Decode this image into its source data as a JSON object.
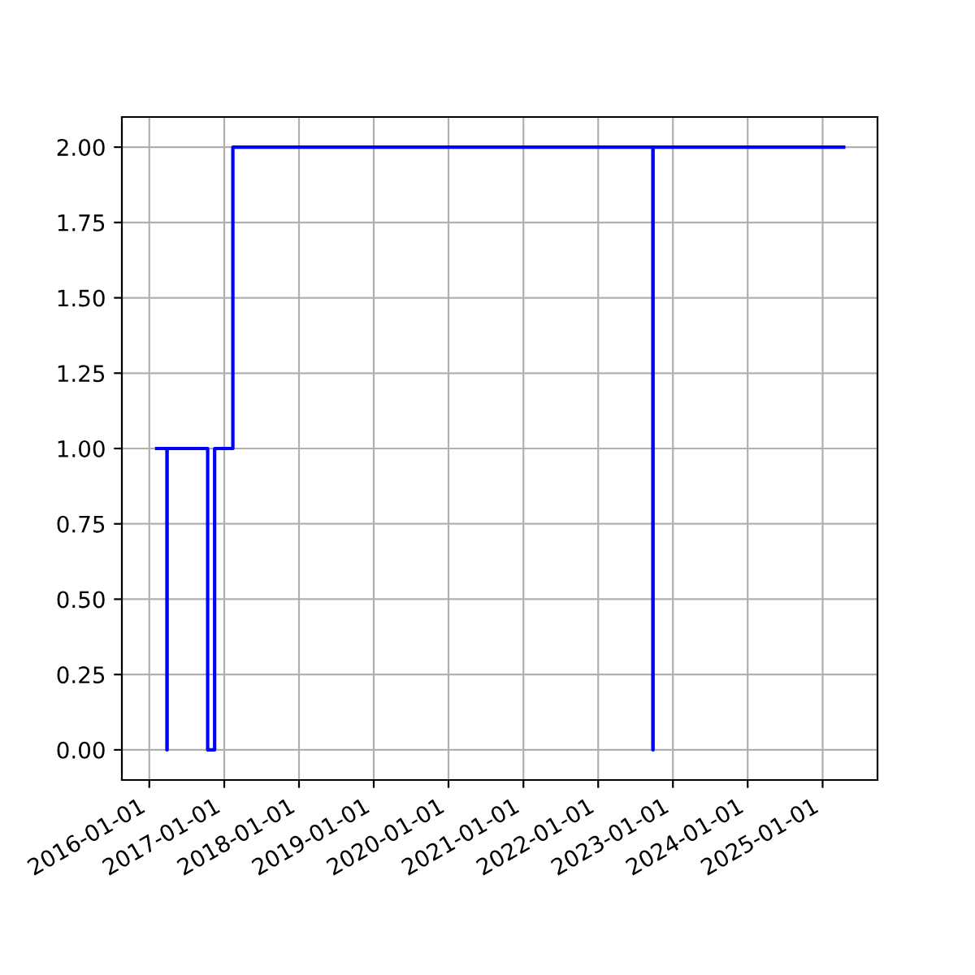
{
  "chart_data": {
    "type": "step",
    "x": [
      "2016-02-06",
      "2016-03-27",
      "2016-03-28",
      "2016-10-12",
      "2016-11-15",
      "2017-02-12",
      "2022-09-25",
      "2022-09-26",
      "2025-04-14"
    ],
    "series": [
      {
        "color": "#0000ff",
        "values": [
          1,
          0,
          1,
          0,
          1,
          2,
          0,
          2,
          2
        ]
      }
    ],
    "xlim": [
      "2015-08-20",
      "2025-09-26"
    ],
    "xticks": [
      "2016-01-01",
      "2017-01-01",
      "2018-01-01",
      "2019-01-01",
      "2020-01-01",
      "2021-01-01",
      "2022-01-01",
      "2023-01-01",
      "2024-01-01",
      "2025-01-01"
    ],
    "ylim": [
      -0.1,
      2.1
    ],
    "yticks": [
      {
        "value": 0,
        "label": "0.00"
      },
      {
        "value": 0.25,
        "label": "0.25"
      },
      {
        "value": 0.5,
        "label": "0.50"
      },
      {
        "value": 0.75,
        "label": "0.75"
      },
      {
        "value": 1,
        "label": "1.00"
      },
      {
        "value": 1.25,
        "label": "1.25"
      },
      {
        "value": 1.5,
        "label": "1.50"
      },
      {
        "value": 1.75,
        "label": "1.75"
      },
      {
        "value": 2,
        "label": "2.00"
      }
    ],
    "grid": true
  }
}
